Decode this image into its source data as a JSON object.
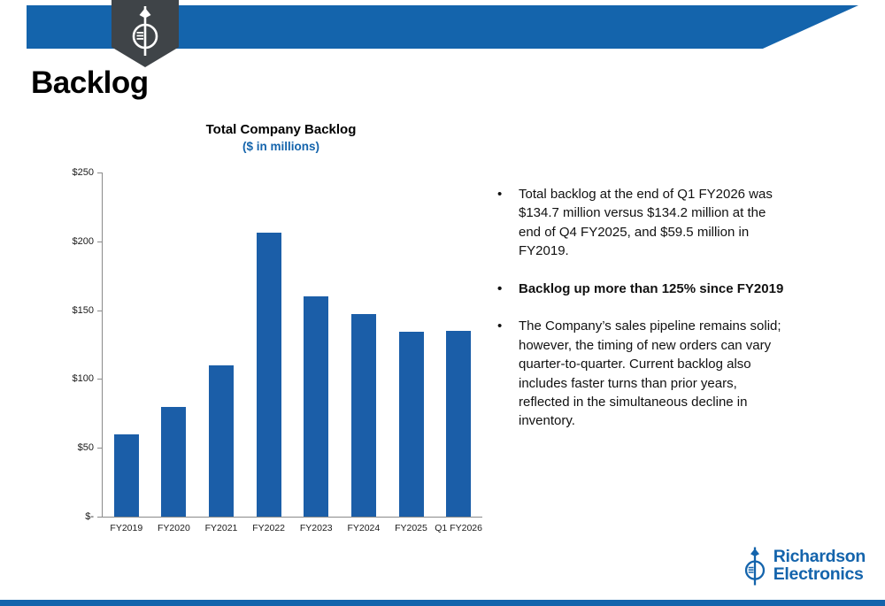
{
  "slide": {
    "title": "Backlog"
  },
  "chart_data": {
    "type": "bar",
    "title": "Total Company Backlog",
    "subtitle": "($ in millions)",
    "categories": [
      "FY2019",
      "FY2020",
      "FY2021",
      "FY2022",
      "FY2023",
      "FY2024",
      "FY2025",
      "Q1 FY2026"
    ],
    "values": [
      59.5,
      80,
      110,
      206,
      160,
      147,
      134.2,
      134.7
    ],
    "ylim": [
      0,
      250
    ],
    "y_ticks": [
      {
        "value": 250,
        "label": "$250"
      },
      {
        "value": 200,
        "label": "$200"
      },
      {
        "value": 150,
        "label": "$150"
      },
      {
        "value": 100,
        "label": "$100"
      },
      {
        "value": 50,
        "label": "$50"
      },
      {
        "value": 0,
        "label": "$-"
      }
    ],
    "bar_color": "#1B5EA8",
    "grid": false,
    "legend": false,
    "xlabel": "",
    "ylabel": ""
  },
  "bullets": [
    {
      "text": "Total backlog at the end of Q1 FY2026 was $134.7 million versus $134.2 million at the end of Q4 FY2025, and $59.5 million in FY2019.",
      "bold": false
    },
    {
      "text": "Backlog up more than 125% since FY2019",
      "bold": true
    },
    {
      "text": "The Company’s sales pipeline remains solid; however, the timing of new orders can vary quarter-to-quarter.  Current backlog also includes faster turns than prior years, reflected in the simultaneous decline in inventory.",
      "bold": false
    }
  ],
  "footer_logo": {
    "line1": "Richardson",
    "line2": "Electronics"
  },
  "colors": {
    "banner_blue": "#1464AC",
    "badge_gray": "#3F4448",
    "bar_blue": "#1B5EA8",
    "accent_blue": "#1464AC"
  }
}
